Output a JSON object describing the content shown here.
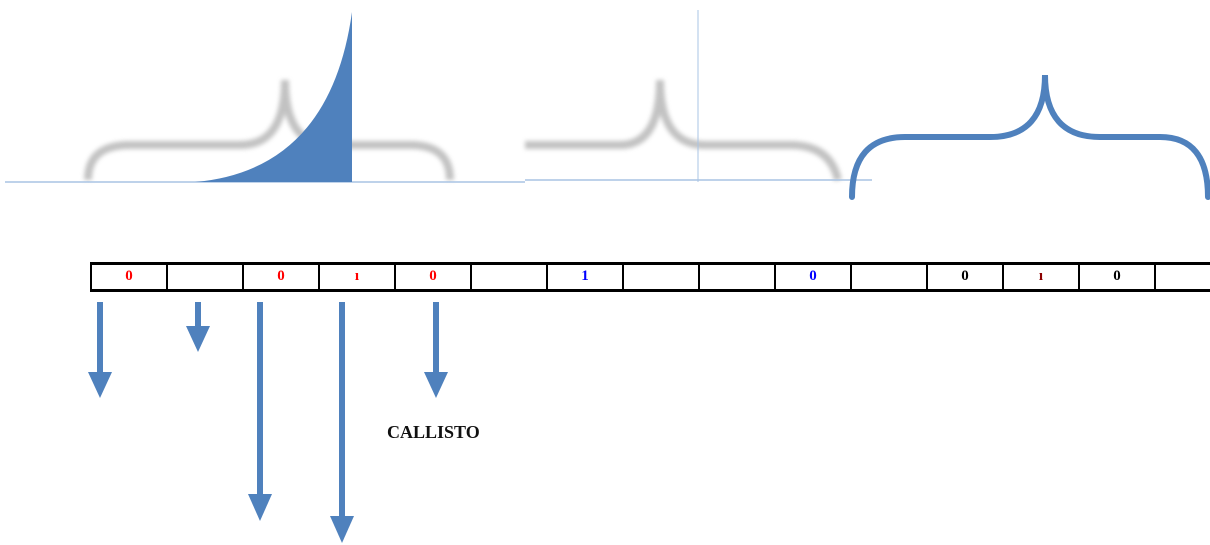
{
  "tape_cells": [
    {
      "text": "0",
      "color": "#ff0000"
    },
    {
      "text": "",
      "color": "#000000"
    },
    {
      "text": "0",
      "color": "#ff0000"
    },
    {
      "text": "ı",
      "color": "#ff0000"
    },
    {
      "text": "0",
      "color": "#ff0000"
    },
    {
      "text": "",
      "color": "#000000"
    },
    {
      "text": "1",
      "color": "#0000ff"
    },
    {
      "text": "",
      "color": "#000000"
    },
    {
      "text": "",
      "color": "#000000"
    },
    {
      "text": "0",
      "color": "#0000ff"
    },
    {
      "text": "",
      "color": "#000000"
    },
    {
      "text": "0",
      "color": "#000000"
    },
    {
      "text": "ı",
      "color": "#8b0000"
    },
    {
      "text": "0",
      "color": "#000000"
    },
    {
      "text": "",
      "color": "#000000"
    }
  ],
  "callisto_label": "CALLISTO",
  "colors": {
    "accent_blue": "#4f81bd",
    "faded_gray": "#b8b8b8",
    "baseline": "#a9c4e4"
  }
}
